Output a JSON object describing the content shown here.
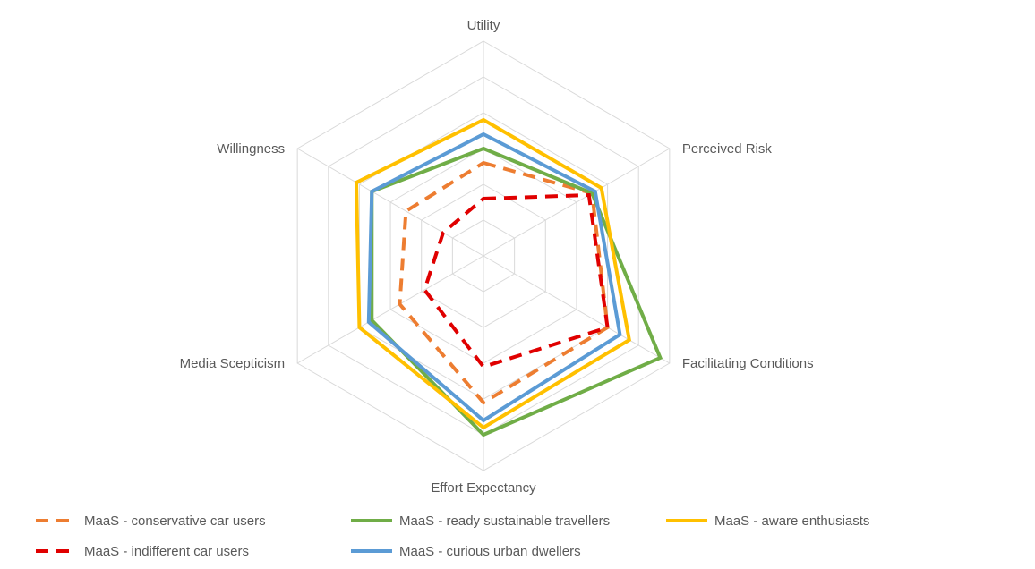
{
  "chart_data": {
    "type": "radar",
    "title": "",
    "axes": [
      "Utility",
      "Perceived Risk",
      "Facilitating Conditions",
      "Effort Expectancy",
      "Media Scepticism",
      "Willingness"
    ],
    "rlim": [
      0,
      6
    ],
    "grid": true,
    "legend_position": "bottom",
    "series": [
      {
        "name": "MaaS - conservative car users",
        "values": [
          2.6,
          3.5,
          4.0,
          4.1,
          2.7,
          2.5
        ],
        "color": "#ED7D31",
        "style": "dashed"
      },
      {
        "name": "MaaS - ready sustainable travellers",
        "values": [
          3.0,
          3.5,
          5.7,
          5.0,
          3.6,
          3.6
        ],
        "color": "#70AD47",
        "style": "solid"
      },
      {
        "name": "MaaS - aware enthusiasts",
        "values": [
          3.8,
          3.8,
          4.7,
          4.8,
          4.0,
          4.1
        ],
        "color": "#FFC000",
        "style": "solid"
      },
      {
        "name": "MaaS - indifferent car users",
        "values": [
          1.6,
          3.4,
          4.0,
          3.1,
          1.9,
          1.3
        ],
        "color": "#E00000",
        "style": "dashed"
      },
      {
        "name": "MaaS - curious urban dwellers",
        "values": [
          3.4,
          3.6,
          4.4,
          4.6,
          3.7,
          3.6
        ],
        "color": "#5B9BD5",
        "style": "solid"
      }
    ]
  }
}
